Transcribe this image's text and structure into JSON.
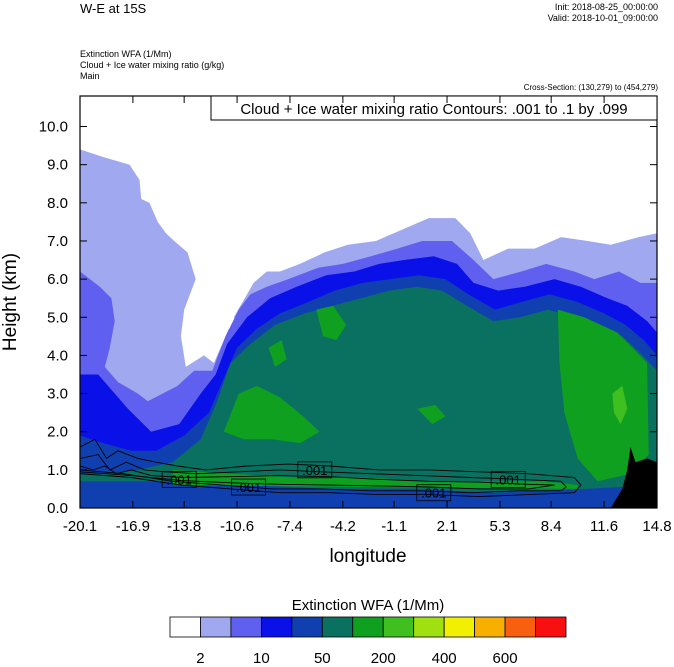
{
  "header": {
    "title": "W-E at 15S",
    "init": "Init: 2018-08-25_00:00:00",
    "valid": "Valid: 2018-10-01_09:00:00",
    "subtitle_1": "Extinction WFA   (1/Mm)",
    "subtitle_2": "Cloud + Ice water mixing ratio   (g/kg)",
    "subtitle_3": "Main",
    "cross_section": "Cross-Section: (130,279) to (454,279)"
  },
  "contour_box": "Cloud + Ice water mixing ratio Contours: .001 to .1 by .099",
  "contour_labels": [
    ".001",
    ".001",
    ".001",
    ".001",
    ".001"
  ],
  "colorbar": {
    "title": "Extinction WFA  (1/Mm)",
    "colors": [
      "#ffffff",
      "#a0a8f0",
      "#6060f0",
      "#0a10e8",
      "#1040b0",
      "#0a7060",
      "#10a020",
      "#40c020",
      "#a0e010",
      "#f0f000",
      "#f8b000",
      "#f86010",
      "#f81010"
    ],
    "labels": [
      "2",
      "10",
      "50",
      "200",
      "400",
      "600"
    ]
  },
  "chart_data": {
    "type": "heatmap",
    "title": "W-E at 15S",
    "xlabel": "longitude",
    "ylabel": "Height (km)",
    "x_ticks": [
      "-20.1",
      "-16.9",
      "-13.8",
      "-10.6",
      "-7.4",
      "-4.2",
      "-1.1",
      "2.1",
      "5.3",
      "8.4",
      "11.6",
      "14.8"
    ],
    "y_ticks": [
      "0.0",
      "1.0",
      "2.0",
      "3.0",
      "4.0",
      "5.0",
      "6.0",
      "7.0",
      "8.0",
      "9.0",
      "10.0"
    ],
    "xlim": [
      -20.1,
      14.8
    ],
    "ylim": [
      0,
      10.8
    ],
    "colorbar_levels": [
      "2",
      "10",
      "50",
      "200",
      "400",
      "600"
    ],
    "terrain_color": "#000000",
    "contour_levels": [
      0.001,
      0.1
    ],
    "fill_regions": [
      {
        "level": 1,
        "color": "#a0a8f0",
        "points": [
          [
            -20.1,
            9.4
          ],
          [
            -18.7,
            9.2
          ],
          [
            -17.1,
            9.0
          ],
          [
            -16.5,
            8.6
          ],
          [
            -16.4,
            8.1
          ],
          [
            -15.9,
            8.0
          ],
          [
            -15.4,
            7.5
          ],
          [
            -14.9,
            7.2
          ],
          [
            -14.4,
            7.0
          ],
          [
            -13.6,
            6.7
          ],
          [
            -13.1,
            6.0
          ],
          [
            -13.8,
            5.2
          ],
          [
            -14.0,
            4.5
          ],
          [
            -13.7,
            3.7
          ],
          [
            -12.6,
            4.0
          ],
          [
            -12.0,
            3.8
          ],
          [
            -11.1,
            4.7
          ],
          [
            -10.6,
            4.0
          ],
          [
            -10.2,
            4.7
          ],
          [
            -10.8,
            5.0
          ],
          [
            -9.6,
            5.9
          ],
          [
            -8.8,
            6.2
          ],
          [
            -8.0,
            6.2
          ],
          [
            -6.8,
            6.4
          ],
          [
            -5.3,
            6.7
          ],
          [
            -3.9,
            6.9
          ],
          [
            -2.2,
            7.0
          ],
          [
            -0.6,
            7.3
          ],
          [
            1.0,
            7.6
          ],
          [
            2.6,
            7.6
          ],
          [
            3.5,
            7.2
          ],
          [
            4.3,
            6.5
          ],
          [
            5.8,
            6.8
          ],
          [
            7.4,
            6.8
          ],
          [
            9.0,
            7.1
          ],
          [
            10.6,
            7.0
          ],
          [
            12.0,
            6.9
          ],
          [
            13.7,
            7.1
          ],
          [
            14.8,
            7.2
          ],
          [
            14.8,
            0
          ],
          [
            -20.1,
            0
          ]
        ]
      },
      {
        "level": 2,
        "color": "#6060f0",
        "points": [
          [
            -20.1,
            6.2
          ],
          [
            -18.9,
            5.8
          ],
          [
            -18.2,
            5.5
          ],
          [
            -18.0,
            4.9
          ],
          [
            -18.3,
            4.2
          ],
          [
            -18.6,
            3.7
          ],
          [
            -17.8,
            3.3
          ],
          [
            -16.6,
            3.0
          ],
          [
            -16.0,
            2.8
          ],
          [
            -14.2,
            3.2
          ],
          [
            -13.2,
            3.6
          ],
          [
            -12.1,
            3.6
          ],
          [
            -11.3,
            4.5
          ],
          [
            -10.5,
            5.2
          ],
          [
            -9.8,
            5.6
          ],
          [
            -8.8,
            5.8
          ],
          [
            -7.5,
            6.0
          ],
          [
            -5.7,
            6.3
          ],
          [
            -4.2,
            6.4
          ],
          [
            -2.5,
            6.6
          ],
          [
            -0.9,
            6.8
          ],
          [
            0.6,
            7.0
          ],
          [
            2.4,
            7.0
          ],
          [
            3.7,
            6.5
          ],
          [
            4.9,
            6.0
          ],
          [
            6.6,
            6.2
          ],
          [
            8.1,
            6.4
          ],
          [
            9.8,
            6.2
          ],
          [
            11.0,
            6.0
          ],
          [
            12.5,
            6.2
          ],
          [
            13.8,
            5.9
          ],
          [
            14.8,
            5.9
          ],
          [
            14.8,
            0
          ],
          [
            -20.1,
            0
          ]
        ]
      },
      {
        "level": 3,
        "color": "#0a10e8",
        "points": [
          [
            -20.1,
            3.5
          ],
          [
            -19.0,
            3.5
          ],
          [
            -17.2,
            2.6
          ],
          [
            -15.8,
            2.0
          ],
          [
            -14.1,
            2.2
          ],
          [
            -12.8,
            3.0
          ],
          [
            -11.9,
            3.5
          ],
          [
            -11.2,
            4.3
          ],
          [
            -10.0,
            5.0
          ],
          [
            -8.6,
            5.5
          ],
          [
            -7.0,
            5.8
          ],
          [
            -5.2,
            6.1
          ],
          [
            -3.5,
            6.2
          ],
          [
            -2.0,
            6.4
          ],
          [
            -0.5,
            6.5
          ],
          [
            1.3,
            6.6
          ],
          [
            2.7,
            6.4
          ],
          [
            3.7,
            5.9
          ],
          [
            5.2,
            5.7
          ],
          [
            6.8,
            5.8
          ],
          [
            8.6,
            6.0
          ],
          [
            10.2,
            5.8
          ],
          [
            11.8,
            5.5
          ],
          [
            13.0,
            5.3
          ],
          [
            14.2,
            4.9
          ],
          [
            14.8,
            4.6
          ],
          [
            14.8,
            0
          ],
          [
            -20.1,
            0
          ]
        ]
      },
      {
        "level": 4,
        "color": "#1040b0",
        "points": [
          [
            -20.1,
            1.9
          ],
          [
            -18.7,
            1.7
          ],
          [
            -17.0,
            1.5
          ],
          [
            -15.5,
            1.5
          ],
          [
            -13.8,
            1.9
          ],
          [
            -12.3,
            2.5
          ],
          [
            -11.4,
            3.4
          ],
          [
            -10.6,
            4.2
          ],
          [
            -9.4,
            4.7
          ],
          [
            -8.0,
            5.1
          ],
          [
            -6.3,
            5.4
          ],
          [
            -4.7,
            5.7
          ],
          [
            -3.0,
            5.9
          ],
          [
            -1.3,
            6.0
          ],
          [
            0.4,
            6.1
          ],
          [
            2.0,
            6.0
          ],
          [
            3.4,
            5.6
          ],
          [
            5.0,
            5.2
          ],
          [
            6.6,
            5.4
          ],
          [
            8.3,
            5.6
          ],
          [
            10.0,
            5.4
          ],
          [
            11.6,
            5.1
          ],
          [
            12.9,
            4.8
          ],
          [
            14.0,
            4.4
          ],
          [
            14.8,
            4.0
          ],
          [
            14.8,
            0
          ],
          [
            -20.1,
            0
          ]
        ]
      },
      {
        "level": 5,
        "color": "#0a7060",
        "points": [
          [
            -20.1,
            0.9
          ],
          [
            -18.5,
            0.9
          ],
          [
            -16.6,
            1.0
          ],
          [
            -14.5,
            1.2
          ],
          [
            -12.8,
            1.8
          ],
          [
            -11.8,
            2.8
          ],
          [
            -11.0,
            3.8
          ],
          [
            -9.8,
            4.3
          ],
          [
            -8.3,
            4.8
          ],
          [
            -6.5,
            5.1
          ],
          [
            -4.8,
            5.3
          ],
          [
            -3.1,
            5.5
          ],
          [
            -1.4,
            5.7
          ],
          [
            0.3,
            5.8
          ],
          [
            1.8,
            5.7
          ],
          [
            3.3,
            5.3
          ],
          [
            4.9,
            4.9
          ],
          [
            6.5,
            5.0
          ],
          [
            8.2,
            5.2
          ],
          [
            9.8,
            5.0
          ],
          [
            11.3,
            4.8
          ],
          [
            12.7,
            4.5
          ],
          [
            13.7,
            4.1
          ],
          [
            14.8,
            3.6
          ],
          [
            14.8,
            0.6
          ],
          [
            10.5,
            0.5
          ],
          [
            5.0,
            0.4
          ],
          [
            0.0,
            0.5
          ],
          [
            -5.0,
            0.5
          ],
          [
            -10.0,
            0.6
          ],
          [
            -15.0,
            0.7
          ],
          [
            -20.1,
            0.7
          ]
        ]
      },
      {
        "level": 6,
        "color": "#10a020",
        "points": [
          [
            -11.4,
            2.0
          ],
          [
            -10.5,
            3.0
          ],
          [
            -9.4,
            3.2
          ],
          [
            -8.0,
            2.9
          ],
          [
            -6.6,
            2.4
          ],
          [
            -5.6,
            2.0
          ],
          [
            -6.8,
            1.7
          ],
          [
            -8.5,
            1.8
          ],
          [
            -10.2,
            1.8
          ]
        ]
      },
      {
        "level": 6,
        "color": "#10a020",
        "points": [
          [
            -5.8,
            5.2
          ],
          [
            -4.8,
            5.3
          ],
          [
            -4.0,
            4.8
          ],
          [
            -4.6,
            4.4
          ],
          [
            -5.4,
            4.5
          ]
        ]
      },
      {
        "level": 6,
        "color": "#10a020",
        "points": [
          [
            -8.7,
            4.2
          ],
          [
            -7.9,
            4.4
          ],
          [
            -7.6,
            3.9
          ],
          [
            -8.3,
            3.7
          ]
        ]
      },
      {
        "level": 6,
        "color": "#10a020",
        "points": [
          [
            8.8,
            5.2
          ],
          [
            10.4,
            5.0
          ],
          [
            12.4,
            4.6
          ],
          [
            14.2,
            3.8
          ],
          [
            14.3,
            1.4
          ],
          [
            13.2,
            0.9
          ],
          [
            11.2,
            0.7
          ],
          [
            10.0,
            1.3
          ],
          [
            9.2,
            2.5
          ],
          [
            8.9,
            3.8
          ]
        ]
      },
      {
        "level": 6,
        "color": "#10a020",
        "points": [
          [
            -14.5,
            1.0
          ],
          [
            -11.0,
            0.9
          ],
          [
            -7.0,
            0.8
          ],
          [
            -3.0,
            0.8
          ],
          [
            1.0,
            0.7
          ],
          [
            5.0,
            0.7
          ],
          [
            8.0,
            0.7
          ],
          [
            10.0,
            0.6
          ],
          [
            10.0,
            0.5
          ],
          [
            -14.5,
            0.6
          ]
        ]
      },
      {
        "level": 6,
        "color": "#10a020",
        "points": [
          [
            0.3,
            2.6
          ],
          [
            1.4,
            2.7
          ],
          [
            2.0,
            2.4
          ],
          [
            1.2,
            2.2
          ]
        ]
      },
      {
        "level": 7,
        "color": "#40c020",
        "points": [
          [
            12.1,
            3.0
          ],
          [
            12.7,
            3.2
          ],
          [
            13.0,
            2.6
          ],
          [
            12.6,
            2.2
          ],
          [
            12.2,
            2.5
          ]
        ]
      }
    ],
    "terrain": [
      [
        12.0,
        0
      ],
      [
        12.7,
        0.5
      ],
      [
        13.0,
        1.0
      ],
      [
        13.2,
        1.6
      ],
      [
        13.5,
        1.2
      ],
      [
        14.2,
        1.3
      ],
      [
        14.8,
        1.2
      ],
      [
        14.8,
        0
      ]
    ],
    "contour_lines": [
      [
        [
          -20.1,
          1.6
        ],
        [
          -19.2,
          1.8
        ],
        [
          -18.5,
          1.3
        ],
        [
          -17.8,
          1.5
        ],
        [
          -16.6,
          1.3
        ],
        [
          -15.5,
          1.2
        ],
        [
          -14.2,
          1.1
        ],
        [
          -12.5,
          1.0
        ],
        [
          -10.0,
          1.1
        ],
        [
          -7.5,
          1.15
        ],
        [
          -5.0,
          1.1
        ],
        [
          -2.0,
          1.0
        ],
        [
          1.0,
          1.0
        ],
        [
          4.0,
          0.95
        ],
        [
          7.0,
          0.9
        ],
        [
          9.8,
          0.8
        ],
        [
          10.2,
          0.6
        ],
        [
          9.8,
          0.4
        ],
        [
          7.0,
          0.35
        ],
        [
          4.0,
          0.3
        ],
        [
          1.0,
          0.35
        ],
        [
          -2.0,
          0.35
        ],
        [
          -5.0,
          0.4
        ],
        [
          -8.0,
          0.4
        ],
        [
          -11.0,
          0.5
        ],
        [
          -14.0,
          0.6
        ],
        [
          -17.0,
          0.8
        ],
        [
          -20.1,
          0.9
        ]
      ],
      [
        [
          -20.1,
          1.3
        ],
        [
          -19.0,
          1.4
        ],
        [
          -18.3,
          1.0
        ],
        [
          -17.3,
          1.2
        ],
        [
          -16.2,
          1.0
        ],
        [
          -15.0,
          0.95
        ],
        [
          -13.0,
          0.9
        ],
        [
          -10.5,
          0.95
        ],
        [
          -8.0,
          1.0
        ],
        [
          -5.5,
          0.95
        ],
        [
          -2.5,
          0.9
        ],
        [
          0.5,
          0.85
        ],
        [
          3.5,
          0.8
        ],
        [
          6.5,
          0.75
        ],
        [
          9.0,
          0.7
        ],
        [
          9.3,
          0.55
        ],
        [
          9.0,
          0.45
        ],
        [
          6.5,
          0.45
        ],
        [
          3.5,
          0.4
        ],
        [
          0.5,
          0.45
        ],
        [
          -2.5,
          0.45
        ],
        [
          -5.5,
          0.5
        ],
        [
          -8.5,
          0.5
        ],
        [
          -11.5,
          0.6
        ],
        [
          -14.5,
          0.7
        ],
        [
          -17.5,
          0.9
        ],
        [
          -20.1,
          1.0
        ]
      ],
      [
        [
          -20.1,
          1.1
        ],
        [
          -19.3,
          1.0
        ],
        [
          -18.6,
          1.1
        ],
        [
          -17.9,
          0.9
        ],
        [
          -17.0,
          1.0
        ],
        [
          -15.8,
          0.85
        ],
        [
          -14.0,
          0.8
        ],
        [
          -11.0,
          0.82
        ],
        [
          -8.0,
          0.85
        ],
        [
          -5.0,
          0.82
        ],
        [
          -2.0,
          0.75
        ],
        [
          1.0,
          0.7
        ],
        [
          4.0,
          0.68
        ],
        [
          7.0,
          0.62
        ],
        [
          8.6,
          0.6
        ],
        [
          7.0,
          0.5
        ],
        [
          4.0,
          0.5
        ],
        [
          1.0,
          0.55
        ],
        [
          -2.0,
          0.58
        ],
        [
          -5.0,
          0.6
        ],
        [
          -8.0,
          0.62
        ],
        [
          -11.0,
          0.66
        ],
        [
          -14.0,
          0.72
        ],
        [
          -17.0,
          0.85
        ],
        [
          -20.1,
          0.95
        ]
      ]
    ],
    "contour_label_positions": [
      [
        -14.1,
        0.75
      ],
      [
        -9.9,
        0.55
      ],
      [
        -5.9,
        1.0
      ],
      [
        1.3,
        0.4
      ],
      [
        5.8,
        0.75
      ]
    ]
  }
}
